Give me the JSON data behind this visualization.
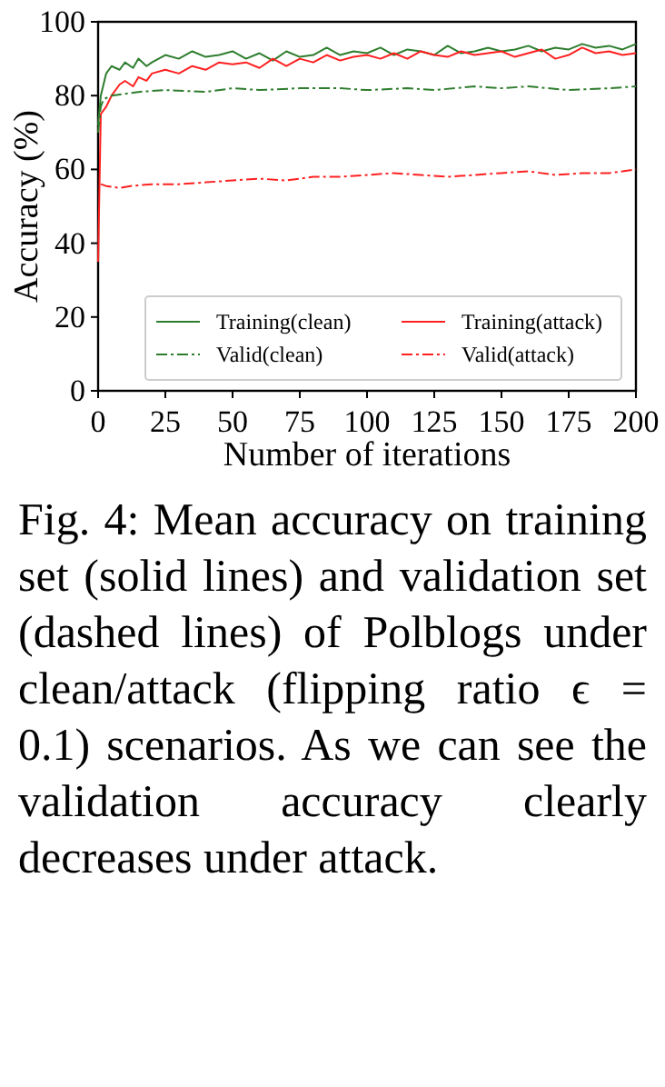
{
  "chart_data": {
    "type": "line",
    "xlabel": "Number of iterations",
    "ylabel": "Accuracy (%)",
    "xlim": [
      0,
      200
    ],
    "xticks": [
      0,
      25,
      50,
      75,
      100,
      125,
      150,
      175,
      200
    ],
    "ylim": [
      0,
      100
    ],
    "yticks": [
      0,
      20,
      40,
      60,
      80,
      100
    ],
    "legend": "bottom",
    "grid": false,
    "marker": "none",
    "series": [
      {
        "name": "Training(clean)",
        "color": "#2e7d2e",
        "line_style": "solid",
        "x": [
          0,
          1,
          3,
          5,
          8,
          10,
          13,
          15,
          18,
          20,
          25,
          30,
          35,
          40,
          45,
          50,
          55,
          60,
          65,
          70,
          75,
          80,
          85,
          90,
          95,
          100,
          105,
          110,
          115,
          120,
          125,
          130,
          135,
          140,
          145,
          150,
          155,
          160,
          165,
          170,
          175,
          180,
          185,
          190,
          195,
          200
        ],
        "values": [
          72,
          80,
          86,
          88,
          87,
          89,
          87.5,
          90,
          88,
          89,
          91,
          90,
          92,
          90.5,
          91,
          92,
          90,
          91.5,
          89.5,
          92,
          90.5,
          91,
          93,
          91,
          92,
          91.5,
          93,
          91,
          92.5,
          92,
          91,
          93.5,
          91.5,
          92,
          93,
          92,
          92.5,
          93.5,
          92,
          93,
          92.5,
          94,
          93,
          93.5,
          92.5,
          94
        ]
      },
      {
        "name": "Training(attack)",
        "color": "#ff2020",
        "line_style": "solid",
        "x": [
          0,
          1,
          3,
          5,
          8,
          10,
          13,
          15,
          18,
          20,
          25,
          30,
          35,
          40,
          45,
          50,
          55,
          60,
          65,
          70,
          75,
          80,
          85,
          90,
          95,
          100,
          105,
          110,
          115,
          120,
          125,
          130,
          135,
          140,
          145,
          150,
          155,
          160,
          165,
          170,
          175,
          180,
          185,
          190,
          195,
          200
        ],
        "values": [
          35,
          75,
          77,
          80,
          83,
          84,
          82.5,
          85,
          84,
          86,
          87,
          86,
          88,
          87,
          89,
          88.5,
          89,
          87.5,
          90,
          88,
          90,
          89,
          91,
          89.5,
          90.5,
          91,
          90,
          91.5,
          90,
          92,
          91,
          90.5,
          92,
          91,
          91.5,
          92,
          90.5,
          91.5,
          92.5,
          90,
          91,
          93,
          91.5,
          92,
          91,
          91.5
        ]
      },
      {
        "name": "Valid(clean)",
        "color": "#2e7d2e",
        "line_style": "dashdot",
        "x": [
          0,
          1,
          2,
          5,
          10,
          15,
          25,
          40,
          50,
          60,
          75,
          90,
          100,
          115,
          125,
          140,
          150,
          160,
          175,
          190,
          200
        ],
        "values": [
          70,
          77,
          79,
          80,
          80.5,
          81,
          81.5,
          81,
          82,
          81.5,
          82,
          82,
          81.5,
          82,
          81.5,
          82.5,
          82,
          82.5,
          81.5,
          82,
          82.5
        ]
      },
      {
        "name": "Valid(attack)",
        "color": "#ff2020",
        "line_style": "dashdot",
        "x": [
          1,
          3,
          8,
          12,
          20,
          30,
          40,
          50,
          60,
          70,
          80,
          90,
          100,
          110,
          120,
          130,
          140,
          150,
          160,
          170,
          180,
          190,
          200
        ],
        "values": [
          56,
          55.5,
          55,
          55.5,
          56,
          56,
          56.5,
          57,
          57.5,
          57,
          58,
          58,
          58.5,
          59,
          58.5,
          58,
          58.5,
          59,
          59.5,
          58.5,
          59,
          59,
          60
        ]
      }
    ],
    "annotations": [
      "Fig. 4: Mean accuracy on training set (solid lines) and validation set (dashed lines) of Polblogs under clean/attack (flipping ratio ϵ = 0.1) scenarios. As we can see the validation accuracy clearly decreases under attack."
    ]
  }
}
